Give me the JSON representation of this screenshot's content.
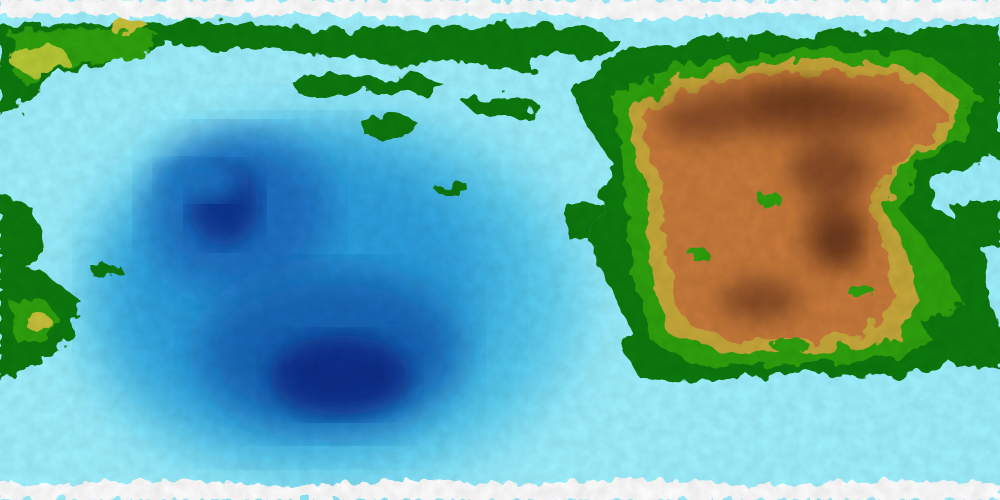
{
  "map": {
    "projection": "equirectangular",
    "palette": {
      "ice": "#ffffff",
      "deep_ocean": "#001a6e",
      "mid_ocean": "#1f86cf",
      "shallow_ocean": "#9ff2ff",
      "lowland": "#0f7a10",
      "plain": "#2fa20f",
      "upland": "#c8c23a",
      "highland": "#c87a3a",
      "peak": "#6e3a1e"
    },
    "features": [
      {
        "name": "polar-ice-north",
        "kind": "ice"
      },
      {
        "name": "polar-ice-south",
        "kind": "ice"
      },
      {
        "name": "western-deep-ocean-basin",
        "kind": "deep-ocean"
      },
      {
        "name": "eastern-continent",
        "kind": "highland-continent"
      },
      {
        "name": "northern-island-chain",
        "kind": "lowland-islands"
      },
      {
        "name": "western-coastal-landmass",
        "kind": "lowland"
      }
    ]
  }
}
